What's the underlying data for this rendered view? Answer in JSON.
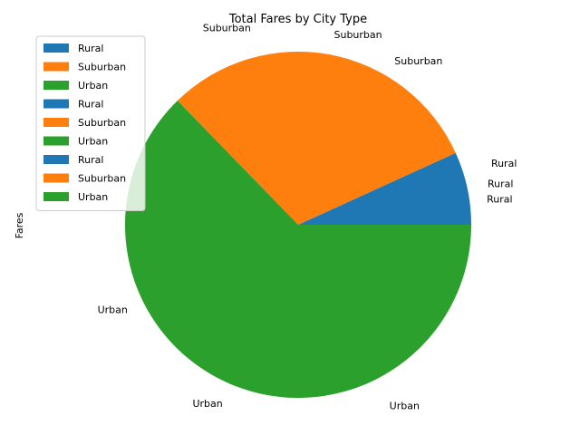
{
  "chart_data": {
    "type": "pie",
    "title": "Total Fares by City Type",
    "ylabel": "Fares",
    "legend_placement": "upper-left",
    "categories": [
      "Rural",
      "Suburban",
      "Urban"
    ],
    "values": [
      4327.93,
      19356.33,
      39854.38
    ],
    "colors": [
      "#1f77b4",
      "#ff7f0e",
      "#2ca02c"
    ],
    "slice_labels": [
      {
        "category": "Rural",
        "labels": [
          "Rural",
          "Rural",
          "Rural"
        ]
      },
      {
        "category": "Suburban",
        "labels": [
          "Suburban",
          "Suburban",
          "Suburban"
        ]
      },
      {
        "category": "Urban",
        "labels": [
          "Urban",
          "Urban",
          "Urban"
        ]
      }
    ],
    "legend_entries": [
      {
        "label": "Rural",
        "color": "#1f77b4"
      },
      {
        "label": "Suburban",
        "color": "#ff7f0e"
      },
      {
        "label": "Urban",
        "color": "#2ca02c"
      },
      {
        "label": "Rural",
        "color": "#1f77b4"
      },
      {
        "label": "Suburban",
        "color": "#ff7f0e"
      },
      {
        "label": "Urban",
        "color": "#2ca02c"
      },
      {
        "label": "Rural",
        "color": "#1f77b4"
      },
      {
        "label": "Suburban",
        "color": "#ff7f0e"
      },
      {
        "label": "Urban",
        "color": "#2ca02c"
      }
    ]
  }
}
